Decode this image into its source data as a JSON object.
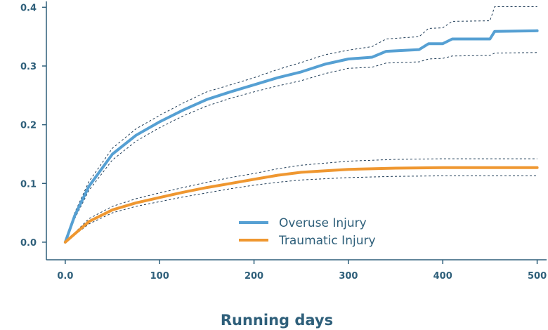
{
  "chart_data": {
    "type": "line",
    "title": "",
    "xlabel": "Running days",
    "ylabel": "",
    "xlim": [
      -20,
      510
    ],
    "ylim": [
      -0.03,
      0.41
    ],
    "xticks": [
      0,
      100,
      200,
      300,
      400,
      500
    ],
    "xtick_labels": [
      "0.0",
      "100",
      "200",
      "300",
      "400",
      "500"
    ],
    "yticks": [
      0.0,
      0.1,
      0.2,
      0.3,
      0.4
    ],
    "ytick_labels": [
      "0.0",
      "0.1",
      "0.2",
      "0.3",
      "0.4"
    ],
    "legend_position": "center",
    "grid": false,
    "series": [
      {
        "name": "Overuse Injury",
        "color": "#56a0d3",
        "x": [
          0,
          10,
          25,
          50,
          75,
          100,
          125,
          150,
          175,
          200,
          225,
          250,
          275,
          300,
          325,
          340,
          375,
          385,
          400,
          410,
          450,
          455,
          500
        ],
        "y": [
          0.0,
          0.045,
          0.095,
          0.15,
          0.182,
          0.205,
          0.225,
          0.243,
          0.256,
          0.268,
          0.28,
          0.29,
          0.303,
          0.312,
          0.315,
          0.325,
          0.328,
          0.338,
          0.338,
          0.346,
          0.346,
          0.359,
          0.36
        ],
        "ci_lower": [
          0.0,
          0.04,
          0.088,
          0.14,
          0.172,
          0.195,
          0.215,
          0.232,
          0.245,
          0.256,
          0.266,
          0.275,
          0.287,
          0.296,
          0.298,
          0.305,
          0.307,
          0.312,
          0.313,
          0.317,
          0.318,
          0.322,
          0.323
        ],
        "ci_upper": [
          0.0,
          0.05,
          0.103,
          0.16,
          0.193,
          0.216,
          0.237,
          0.256,
          0.268,
          0.28,
          0.294,
          0.306,
          0.319,
          0.327,
          0.333,
          0.346,
          0.35,
          0.364,
          0.365,
          0.376,
          0.377,
          0.401,
          0.401
        ]
      },
      {
        "name": "Traumatic Injury",
        "color": "#ef9730",
        "x": [
          0,
          25,
          50,
          75,
          100,
          125,
          150,
          175,
          200,
          225,
          250,
          300,
          350,
          400,
          450,
          500
        ],
        "y": [
          0.0,
          0.035,
          0.055,
          0.067,
          0.076,
          0.085,
          0.093,
          0.1,
          0.107,
          0.114,
          0.119,
          0.124,
          0.126,
          0.127,
          0.127,
          0.127
        ],
        "ci_lower": [
          0.0,
          0.031,
          0.05,
          0.061,
          0.069,
          0.077,
          0.084,
          0.091,
          0.097,
          0.102,
          0.106,
          0.11,
          0.112,
          0.113,
          0.113,
          0.113
        ],
        "ci_upper": [
          0.0,
          0.04,
          0.061,
          0.074,
          0.084,
          0.093,
          0.102,
          0.11,
          0.117,
          0.125,
          0.131,
          0.138,
          0.141,
          0.142,
          0.142,
          0.142
        ]
      }
    ]
  }
}
